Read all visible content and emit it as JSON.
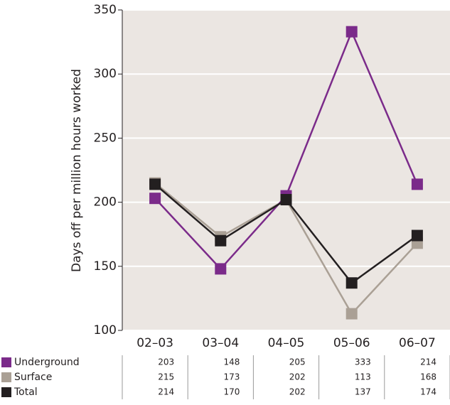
{
  "chart_data": {
    "type": "line",
    "y_label": "Days off per million hours worked",
    "categories": [
      "02–03",
      "03–04",
      "04–05",
      "05–06",
      "06–07"
    ],
    "series": [
      {
        "name": "Underground",
        "color": "#7b2b8a",
        "values": [
          203,
          148,
          205,
          333,
          214
        ]
      },
      {
        "name": "Surface",
        "color": "#aaa095",
        "values": [
          215,
          173,
          202,
          113,
          168
        ]
      },
      {
        "name": "Total",
        "color": "#231f20",
        "values": [
          214,
          170,
          202,
          137,
          174
        ]
      }
    ],
    "ylim": [
      100,
      350
    ],
    "yticks": [
      100,
      150,
      200,
      250,
      300,
      350
    ],
    "grid": true
  }
}
